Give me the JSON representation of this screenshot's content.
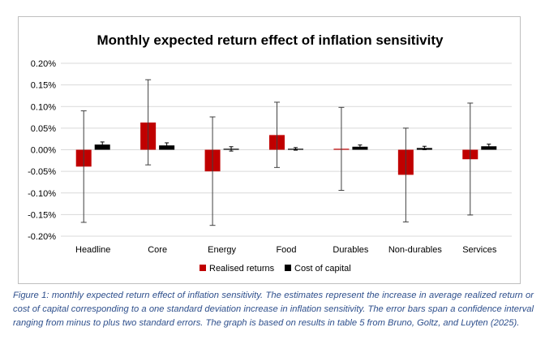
{
  "chart_data": {
    "type": "bar",
    "title": "Monthly expected return effect of inflation sensitivity",
    "categories": [
      "Headline",
      "Core",
      "Energy",
      "Food",
      "Durables",
      "Non-durables",
      "Services"
    ],
    "ylim": [
      -0.2,
      0.2
    ],
    "yticks": [
      0.2,
      0.15,
      0.1,
      0.05,
      0.0,
      -0.05,
      -0.1,
      -0.15,
      -0.2
    ],
    "ytick_labels": [
      "0.20%",
      "0.15%",
      "0.10%",
      "0.05%",
      "0.00%",
      "-0.05%",
      "-0.10%",
      "-0.15%",
      "-0.20%"
    ],
    "grid": true,
    "legend_position": "bottom",
    "series": [
      {
        "name": "Realised returns",
        "color": "#c00000",
        "values": [
          -0.039,
          0.063,
          -0.05,
          0.034,
          0.002,
          -0.058,
          -0.022
        ],
        "error_low": [
          -0.168,
          -0.035,
          -0.175,
          -0.041,
          -0.094,
          -0.167,
          -0.151
        ],
        "error_high": [
          0.09,
          0.162,
          0.076,
          0.11,
          0.098,
          0.05,
          0.108
        ]
      },
      {
        "name": "Cost of capital",
        "color": "#000000",
        "values": [
          0.012,
          0.01,
          0.002,
          0.002,
          0.007,
          0.004,
          0.008
        ],
        "error_low": [
          0.006,
          0.004,
          -0.003,
          -0.001,
          0.003,
          0.0,
          0.003
        ],
        "error_high": [
          0.018,
          0.016,
          0.007,
          0.005,
          0.011,
          0.008,
          0.013
        ]
      }
    ]
  },
  "caption": "Figure 1: monthly expected return effect of inflation sensitivity. The estimates represent the increase in average realized return or cost of capital corresponding to a one standard deviation increase in inflation sensitivity. The error bars span a confidence interval ranging from minus to plus two standard errors. The graph is based on results in table 5 from Bruno, Goltz, and Luyten (2025)."
}
